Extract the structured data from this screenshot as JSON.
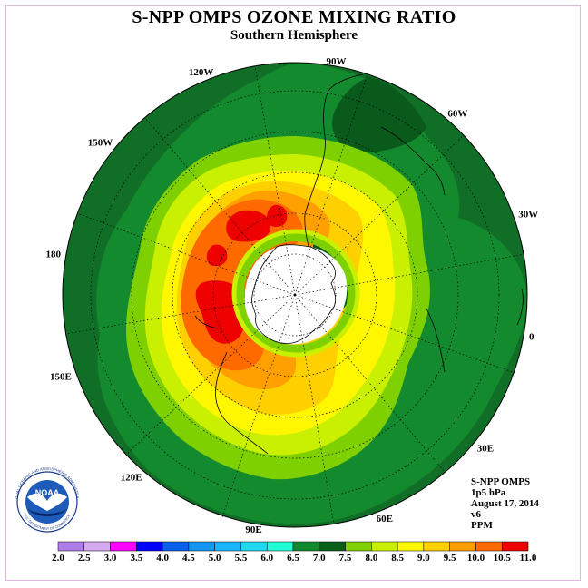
{
  "header": {
    "title": "S-NPP OMPS OZONE MIXING RATIO",
    "subtitle": "Southern Hemisphere"
  },
  "map": {
    "projection": "south-polar-stereographic",
    "longitude_labels": [
      {
        "text": "90W",
        "lon": -90
      },
      {
        "text": "60W",
        "lon": -60
      },
      {
        "text": "30W",
        "lon": -30
      },
      {
        "text": "0",
        "lon": 0
      },
      {
        "text": "30E",
        "lon": 30
      },
      {
        "text": "60E",
        "lon": 60
      },
      {
        "text": "90E",
        "lon": 90
      },
      {
        "text": "120E",
        "lon": 120
      },
      {
        "text": "150E",
        "lon": 150
      },
      {
        "text": "180",
        "lon": 180
      },
      {
        "text": "150W",
        "lon": -150
      },
      {
        "text": "120W",
        "lon": -120
      }
    ],
    "colors": {
      "background_field": "#138a2e",
      "ocean_outer": "#116e27",
      "field_7_0": "#0a5a1c",
      "field_7_5": "#7fd000",
      "field_8_0": "#c9f000",
      "field_8_5": "#fff700",
      "field_9_0": "#ffd000",
      "field_9_5": "#ffa000",
      "field_10_0": "#ff6a00",
      "field_10_5": "#ee0000",
      "pole_missing": "#ffffff"
    }
  },
  "info": {
    "product": "S-NPP OMPS",
    "level": "1p5 hPa",
    "date": "August 17, 2014",
    "version": "v6",
    "units": "PPM"
  },
  "colorbar": {
    "labels": [
      "2.0",
      "2.5",
      "3.0",
      "3.5",
      "4.0",
      "4.5",
      "5.0",
      "5.5",
      "6.0",
      "6.5",
      "7.0",
      "7.5",
      "8.0",
      "8.5",
      "9.0",
      "9.5",
      "10.0",
      "10.5",
      "11.0"
    ],
    "colors": [
      "#b07ce8",
      "#d6a9f0",
      "#ff00ff",
      "#0000ff",
      "#0a60e8",
      "#1496f0",
      "#18b4ff",
      "#22d8f0",
      "#22ffd8",
      "#118a2e",
      "#066018",
      "#7fd000",
      "#c9f000",
      "#fff700",
      "#ffd000",
      "#ffa000",
      "#ff6a00",
      "#ee0000",
      "#7a4a2a"
    ]
  },
  "logo": {
    "text": "NOAA",
    "ring_text": "NATIONAL OCEANIC AND ATMOSPHERIC ADMINISTRATION",
    "bottom_text": "U.S. DEPARTMENT OF COMMERCE"
  }
}
